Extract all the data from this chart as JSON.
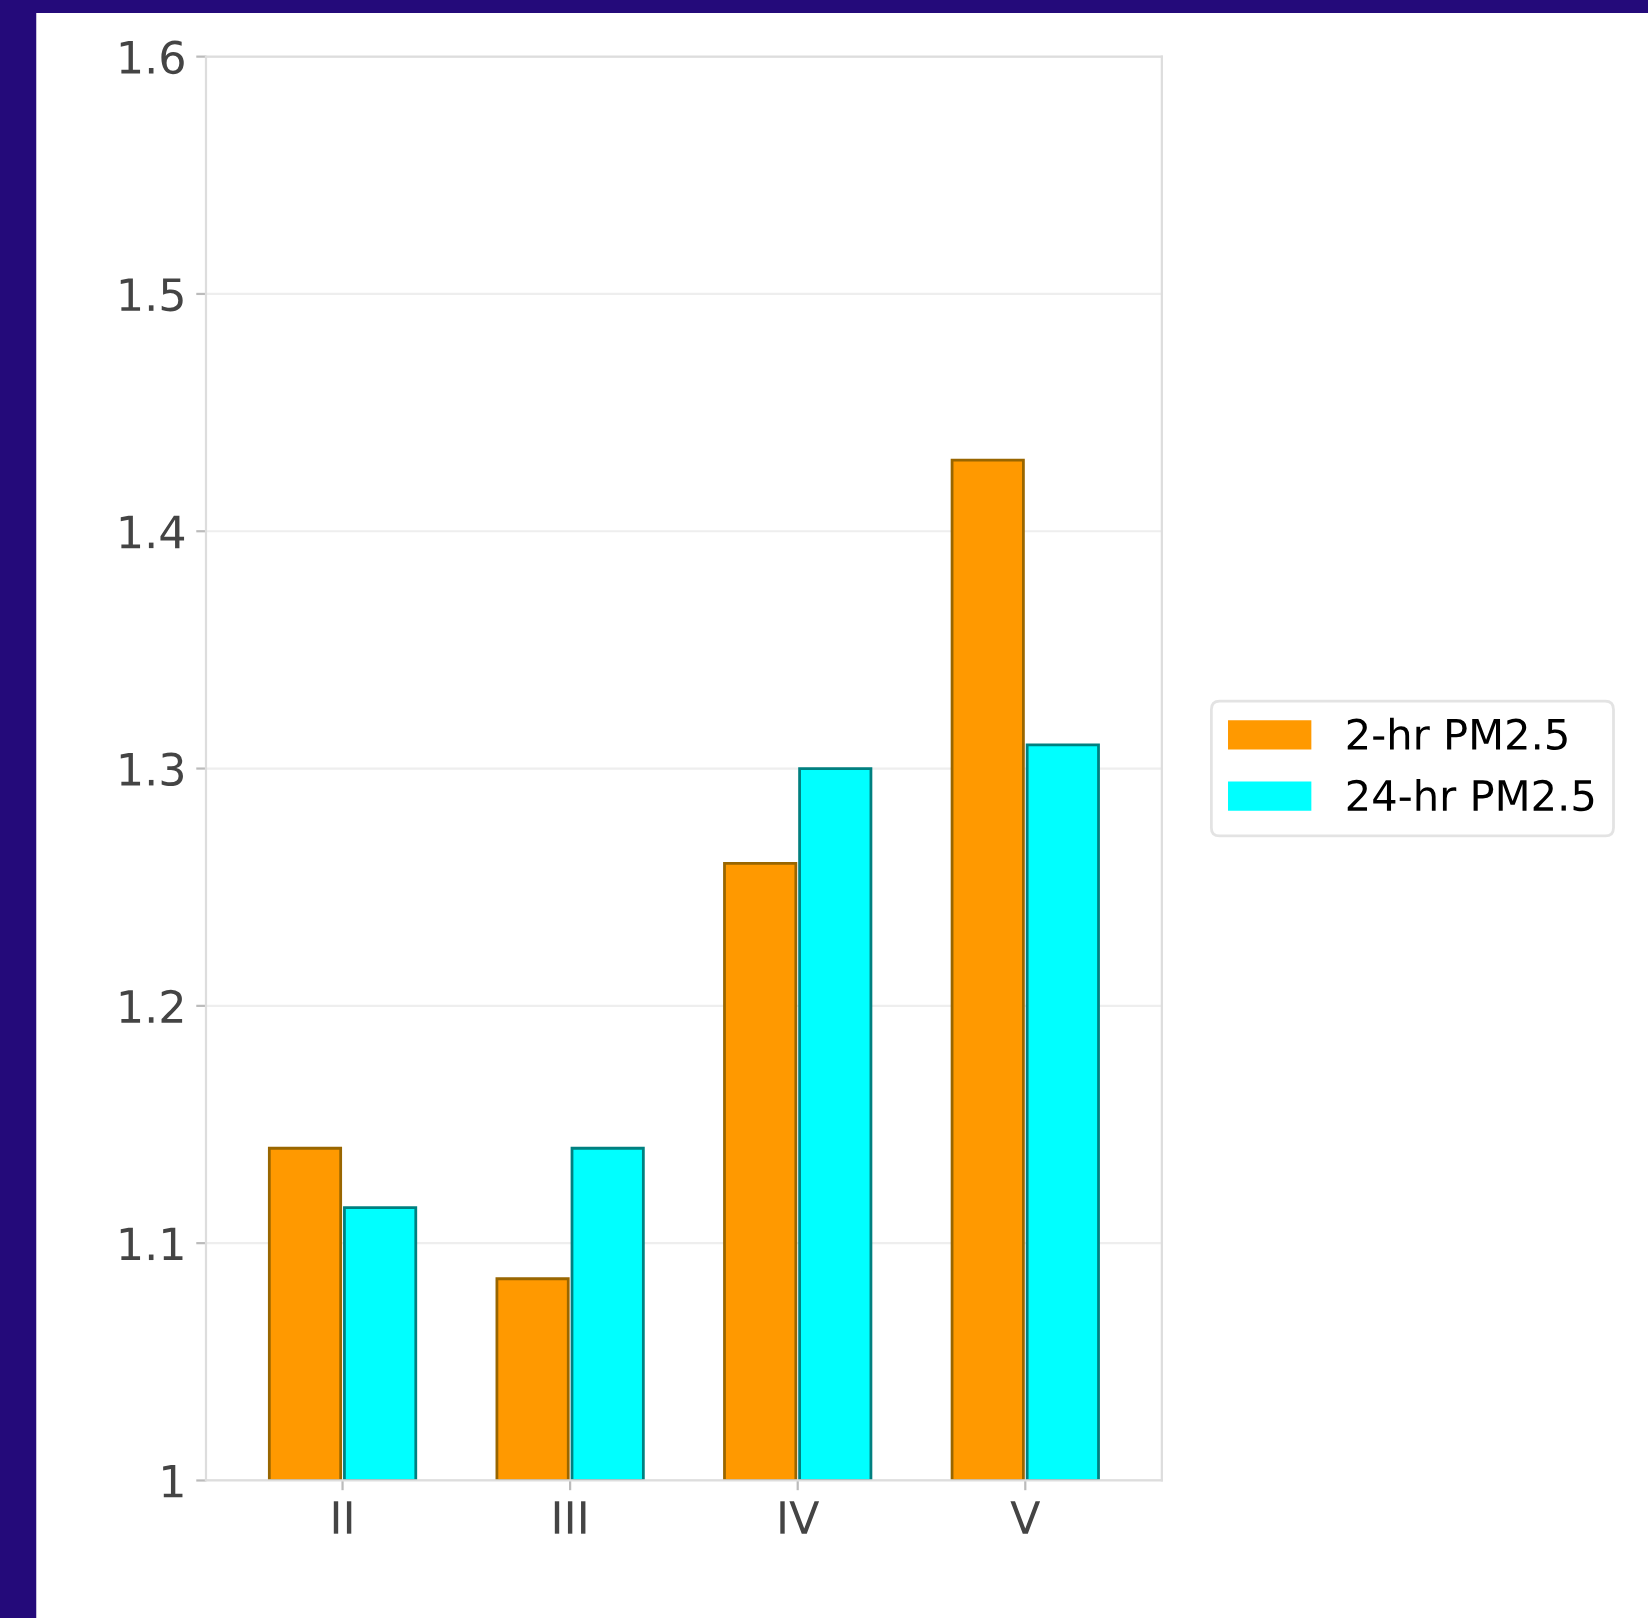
{
  "chart_data": {
    "type": "bar",
    "categories": [
      "II",
      "III",
      "IV",
      "V"
    ],
    "series": [
      {
        "name": "2-hr PM2.5",
        "color": "#ff9900",
        "values": [
          1.14,
          1.085,
          1.26,
          1.43
        ]
      },
      {
        "name": "24-hr PM2.5",
        "color": "#00ffff",
        "values": [
          1.115,
          1.14,
          1.3,
          1.31
        ]
      }
    ],
    "ylim": [
      1,
      1.6
    ],
    "yticks": [
      1,
      1.1,
      1.2,
      1.3,
      1.4,
      1.5,
      1.6
    ],
    "grid": "y",
    "legend": "right"
  }
}
